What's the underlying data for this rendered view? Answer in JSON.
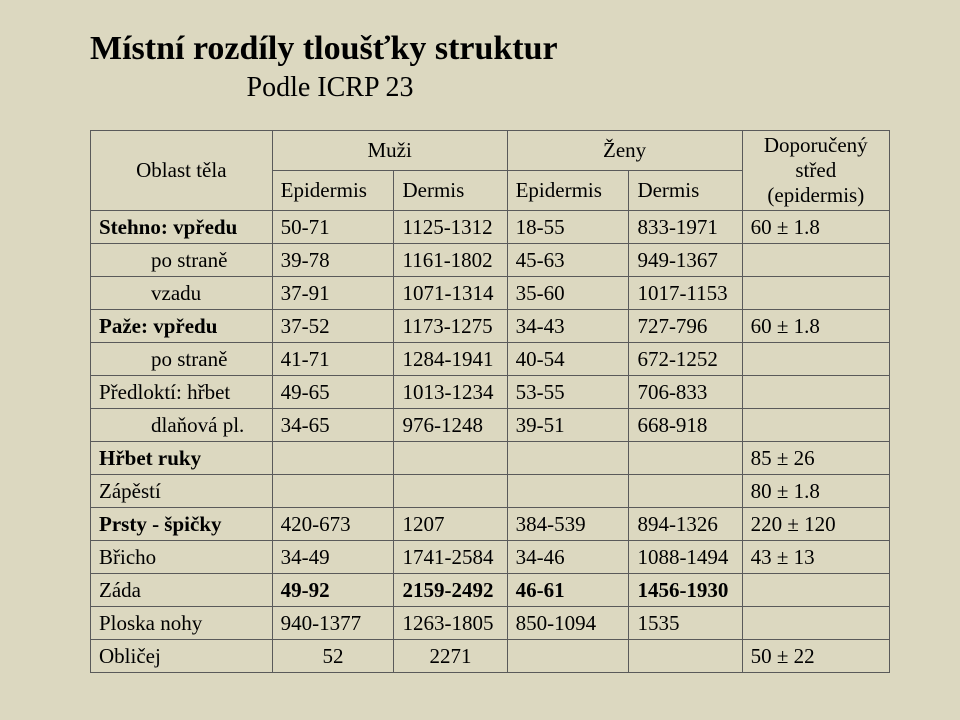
{
  "title": "Místní rozdíly tloušťky struktur",
  "subtitle": "Podle ICRP 23",
  "headers": {
    "area": "Oblast těla",
    "men": "Muži",
    "women": "Ženy",
    "rec": "Doporučený střed (epidermis)",
    "epi": "Epidermis",
    "der": "Dermis"
  },
  "rows": [
    {
      "label": "Stehno: vpředu",
      "bold": true,
      "me": "50-71",
      "md": "1125-1312",
      "we": "18-55",
      "wd": "833-1971",
      "rec": "60 ± 1.8"
    },
    {
      "label": "po straně",
      "indent": true,
      "me": "39-78",
      "md": "1161-1802",
      "we": "45-63",
      "wd": "949-1367",
      "rec": ""
    },
    {
      "label": "vzadu",
      "indent": true,
      "me": "37-91",
      "md": "1071-1314",
      "we": "35-60",
      "wd": "1017-1153",
      "rec": ""
    },
    {
      "label": "Paže:   vpředu",
      "bold": true,
      "me": "37-52",
      "md": "1173-1275",
      "we": "34-43",
      "wd": "727-796",
      "rec": "60 ± 1.8"
    },
    {
      "label": "po straně",
      "indent": true,
      "me": "41-71",
      "md": "1284-1941",
      "we": "40-54",
      "wd": "672-1252",
      "rec": ""
    },
    {
      "label": "Předloktí: hřbet",
      "me": "49-65",
      "md": "1013-1234",
      "we": "53-55",
      "wd": "706-833",
      "rec": ""
    },
    {
      "label": "dlaňová pl.",
      "indent": true,
      "me": "34-65",
      "md": "976-1248",
      "we": "39-51",
      "wd": "668-918",
      "rec": ""
    },
    {
      "label": "Hřbet ruky",
      "bold": true,
      "me": "",
      "md": "",
      "we": "",
      "wd": "",
      "rec": "85 ± 26"
    },
    {
      "label": "Zápěstí",
      "me": "",
      "md": "",
      "we": "",
      "wd": "",
      "rec": "80 ± 1.8"
    },
    {
      "label": "Prsty - špičky",
      "bold": true,
      "me": "420-673",
      "md": "1207",
      "we": "384-539",
      "wd": "894-1326",
      "rec": "220 ± 120"
    },
    {
      "label": "Břicho",
      "me": "34-49",
      "md": "1741-2584",
      "we": "34-46",
      "wd": "1088-1494",
      "rec": "43 ± 13"
    },
    {
      "label": "Záda",
      "me": "49-92",
      "md": "2159-2492",
      "we": "46-61",
      "wd": "1456-1930",
      "rec": "",
      "boldData": true
    },
    {
      "label": "Ploska nohy",
      "me": "940-1377",
      "md": "1263-1805",
      "we": "850-1094",
      "wd": "1535",
      "rec": ""
    },
    {
      "label": "Obličej",
      "me": "52",
      "md": "2271",
      "we": "",
      "wd": "",
      "rec": "50 ± 22",
      "centerNums": true
    }
  ]
}
